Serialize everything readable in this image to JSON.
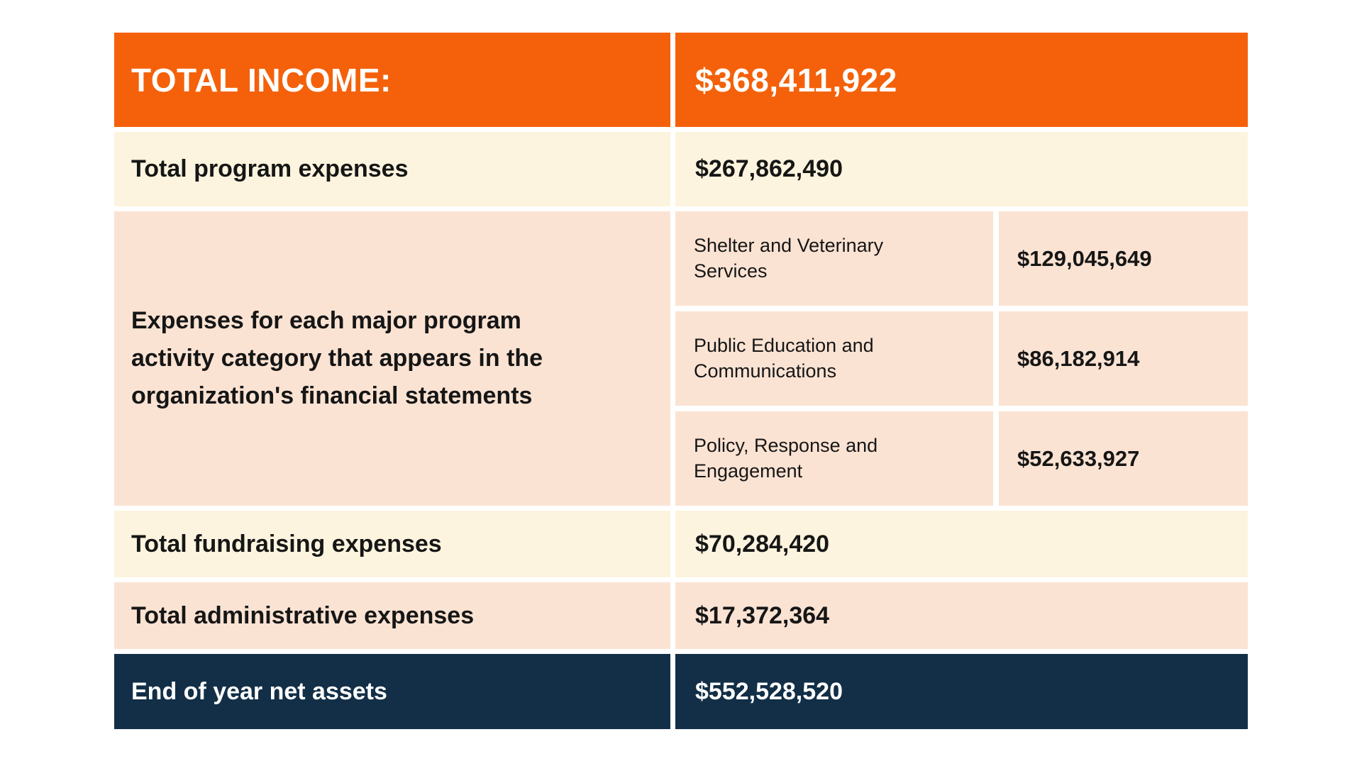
{
  "colors": {
    "orange": "#f4610a",
    "cream": "#fcf4de",
    "peach": "#fbe3d3",
    "navy": "#122f47",
    "background": "#ffffff",
    "text_dark": "#161616",
    "text_light": "#ffffff"
  },
  "header": {
    "label": "TOTAL INCOME:",
    "value": "$368,411,922"
  },
  "program_expenses": {
    "label": "Total program expenses",
    "value": "$267,862,490"
  },
  "program_breakdown": {
    "label": "Expenses for each major program activity category that appears in the organization's financial statements",
    "items": [
      {
        "name": "Shelter and Veterinary Services",
        "value": "$129,045,649"
      },
      {
        "name": "Public Education and Communications",
        "value": "$86,182,914"
      },
      {
        "name": "Policy, Response and Engagement",
        "value": "$52,633,927"
      }
    ]
  },
  "fundraising_expenses": {
    "label": "Total fundraising expenses",
    "value": "$70,284,420"
  },
  "administrative_expenses": {
    "label": "Total administrative expenses",
    "value": "$17,372,364"
  },
  "net_assets": {
    "label": "End of year net assets",
    "value": "$552,528,520"
  }
}
